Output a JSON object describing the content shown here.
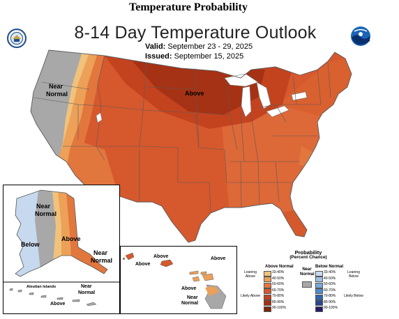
{
  "page_title": "Temperature Probability",
  "map": {
    "title": "8-14 Day Temperature Outlook",
    "valid_label": "Valid:",
    "valid_dates": "September 23 - 29, 2025",
    "issued_label": "Issued:",
    "issued_date": "September 15, 2025",
    "region_labels": {
      "conus_near": "Near",
      "conus_normal": "Normal",
      "conus_above": "Above",
      "ak_near": "Near",
      "ak_normal": "Normal",
      "ak_below": "Below",
      "ak_above": "Above",
      "ak_near2": "Near",
      "ak_normal2": "Normal",
      "aleutian_title": "Aleutian Islands",
      "aleutian_near": "Near",
      "aleutian_normal": "Normal",
      "aleutian_above": "Above",
      "hi_above1": "Above",
      "hi_above2": "Above",
      "hi_above3": "Above",
      "hi_above4": "Above",
      "hi_near": "Near",
      "hi_normal": "Normal"
    }
  },
  "legend": {
    "title": "Probability",
    "subtitle": "(Percent Chance)",
    "above_header": "Above Normal",
    "below_header": "Below Normal",
    "leaning_above": "Leaning Above",
    "likely_above": "Likely Above",
    "near_normal": "Near Normal",
    "leaning_below": "Leaning Below",
    "likely_below": "Likely Below",
    "bins": [
      "33-40%",
      "40-50%",
      "50-60%",
      "60-70%",
      "70-80%",
      "80-90%",
      "90-100%"
    ],
    "above_colors": [
      "#f0c27b",
      "#eda058",
      "#e2773e",
      "#d6582d",
      "#c4431f",
      "#a53214",
      "#7a2a0a"
    ],
    "below_colors": [
      "#c6d9ee",
      "#9fc1e4",
      "#7aa8d9",
      "#4f8cc9",
      "#2f65ac",
      "#27488f",
      "#261b66"
    ],
    "near_color": "#a8a8a8"
  },
  "logos": {
    "left": "noaa-seal-icon",
    "right": "noaa-logo-icon"
  }
}
